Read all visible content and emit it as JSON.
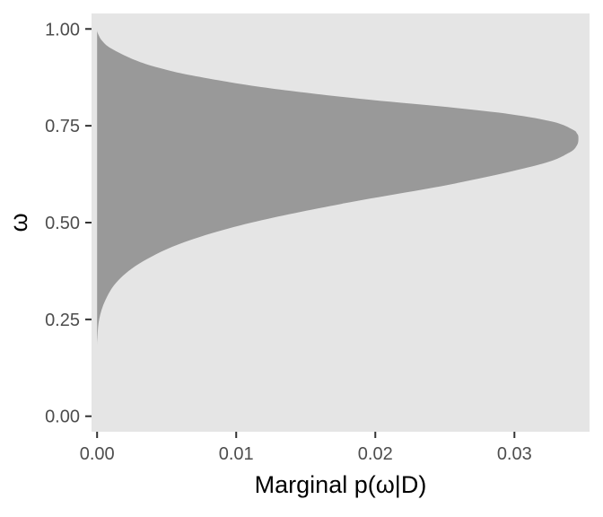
{
  "colors": {
    "panel_background": "#e5e5e5",
    "area_fill": "#999999",
    "tick_mark": "#333333",
    "tick_label": "#4d4d4d",
    "axis_title": "#000000"
  },
  "chart_data": {
    "type": "area",
    "title": "",
    "xlabel": "Marginal p(ω|D)",
    "ylabel": "ω",
    "xlim": [
      -0.0004,
      0.0354
    ],
    "ylim": [
      -0.04,
      1.04
    ],
    "x_ticks": [
      0.0,
      0.01,
      0.02,
      0.03
    ],
    "x_tick_labels": [
      "0.00",
      "0.01",
      "0.02",
      "0.03"
    ],
    "y_ticks": [
      0.0,
      0.25,
      0.5,
      0.75,
      1.0
    ],
    "y_tick_labels": [
      "0.00",
      "0.25",
      "0.50",
      "0.75",
      "1.00"
    ],
    "grid": false,
    "legend": "none",
    "series": [
      {
        "orientation": "vertical-density",
        "omega": [
          0.18,
          0.2,
          0.25,
          0.3,
          0.35,
          0.4,
          0.45,
          0.5,
          0.55,
          0.6,
          0.65,
          0.68,
          0.7,
          0.72,
          0.73,
          0.74,
          0.76,
          0.78,
          0.8,
          0.82,
          0.85,
          0.88,
          0.9,
          0.92,
          0.95,
          0.97,
          0.99,
          1.0
        ],
        "density": [
          0.0,
          2e-05,
          0.00015,
          0.0006,
          0.0015,
          0.0033,
          0.0063,
          0.0111,
          0.0178,
          0.0256,
          0.0318,
          0.0339,
          0.0345,
          0.0346,
          0.0345,
          0.0342,
          0.0328,
          0.0297,
          0.0247,
          0.0188,
          0.0118,
          0.0068,
          0.0044,
          0.0027,
          0.001,
          0.00035,
          4e-05,
          0.0
        ]
      }
    ]
  }
}
